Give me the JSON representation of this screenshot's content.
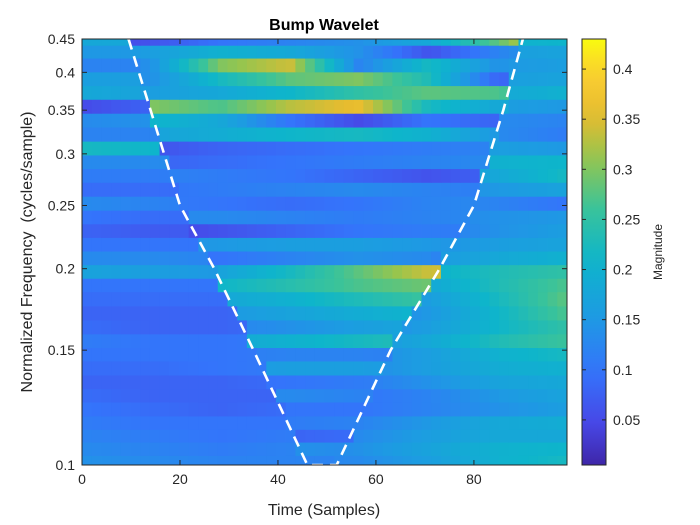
{
  "chart_data": {
    "type": "heatmap",
    "title": "Bump Wavelet",
    "xlabel": "Time (Samples)",
    "ylabel": "Normalized Frequency  (cycles/sample)",
    "colorbar_label": "Magnitude",
    "xlim": [
      0,
      99
    ],
    "ylim": [
      0.1,
      0.45
    ],
    "yscale": "log",
    "clim": [
      0.005,
      0.43
    ],
    "colormap": "parula",
    "x_ticks": [
      0,
      20,
      40,
      60,
      80
    ],
    "x_tick_labels": [
      "0",
      "20",
      "40",
      "60",
      "80"
    ],
    "y_ticks": [
      0.1,
      0.15,
      0.2,
      0.25,
      0.3,
      0.35,
      0.4,
      0.45
    ],
    "y_tick_labels": [
      "0.1",
      "0.15",
      "0.2",
      "0.25",
      "0.3",
      "0.35",
      "0.4",
      "0.45"
    ],
    "cb_ticks": [
      0.05,
      0.1,
      0.15,
      0.2,
      0.25,
      0.3,
      0.35,
      0.4
    ],
    "cb_tick_labels": [
      "0.05",
      "0.1",
      "0.15",
      "0.2",
      "0.25",
      "0.3",
      "0.35",
      "0.4"
    ],
    "cone_of_influence": {
      "style": "white dashed",
      "points": [
        [
          9.5,
          0.45
        ],
        [
          14,
          0.35
        ],
        [
          20,
          0.25
        ],
        [
          27,
          0.2
        ],
        [
          35,
          0.15
        ],
        [
          46,
          0.1
        ],
        [
          52,
          0.1
        ],
        [
          63,
          0.15
        ],
        [
          73,
          0.2
        ],
        [
          80,
          0.25
        ],
        [
          86,
          0.35
        ],
        [
          90,
          0.45
        ]
      ]
    },
    "rows": [
      {
        "f": 0.101,
        "inside": [
          0.1,
          0.1,
          0.11,
          0.12,
          0.12,
          0.1,
          0.09,
          0.09
        ],
        "outside": [
          0.14,
          0.13,
          0.12,
          0.12,
          0.13,
          0.16,
          0.2,
          0.22
        ]
      },
      {
        "f": 0.106,
        "inside": [
          0.12,
          0.13,
          0.13,
          0.14,
          0.13,
          0.12,
          0.12,
          0.13
        ],
        "outside": [
          0.13,
          0.12,
          0.11,
          0.12,
          0.14,
          0.17,
          0.2,
          0.21
        ]
      },
      {
        "f": 0.111,
        "inside": [
          0.1,
          0.09,
          0.08,
          0.08,
          0.09,
          0.1,
          0.11,
          0.12
        ],
        "outside": [
          0.12,
          0.11,
          0.1,
          0.11,
          0.13,
          0.16,
          0.18,
          0.18
        ]
      },
      {
        "f": 0.116,
        "inside": [
          0.12,
          0.12,
          0.11,
          0.11,
          0.12,
          0.14,
          0.15,
          0.15
        ],
        "outside": [
          0.11,
          0.1,
          0.1,
          0.1,
          0.12,
          0.15,
          0.18,
          0.19
        ]
      },
      {
        "f": 0.122,
        "inside": [
          0.07,
          0.08,
          0.09,
          0.1,
          0.1,
          0.09,
          0.08,
          0.07
        ],
        "outside": [
          0.1,
          0.09,
          0.08,
          0.09,
          0.1,
          0.12,
          0.14,
          0.16
        ]
      },
      {
        "f": 0.128,
        "inside": [
          0.11,
          0.12,
          0.13,
          0.13,
          0.12,
          0.11,
          0.1,
          0.09
        ],
        "outside": [
          0.09,
          0.08,
          0.08,
          0.08,
          0.1,
          0.12,
          0.15,
          0.17
        ]
      },
      {
        "f": 0.134,
        "inside": [
          0.08,
          0.08,
          0.09,
          0.1,
          0.11,
          0.12,
          0.12,
          0.11
        ],
        "outside": [
          0.08,
          0.08,
          0.08,
          0.09,
          0.11,
          0.14,
          0.17,
          0.18
        ]
      },
      {
        "f": 0.141,
        "inside": [
          0.13,
          0.14,
          0.15,
          0.16,
          0.16,
          0.15,
          0.14,
          0.13
        ],
        "outside": [
          0.09,
          0.09,
          0.1,
          0.11,
          0.13,
          0.16,
          0.19,
          0.2
        ]
      },
      {
        "f": 0.148,
        "inside": [
          0.1,
          0.1,
          0.11,
          0.12,
          0.12,
          0.11,
          0.11,
          0.11
        ],
        "outside": [
          0.1,
          0.1,
          0.1,
          0.11,
          0.13,
          0.16,
          0.2,
          0.22
        ]
      },
      {
        "f": 0.155,
        "inside": [
          0.14,
          0.16,
          0.18,
          0.2,
          0.22,
          0.24,
          0.26,
          0.27
        ],
        "outside": [
          0.11,
          0.1,
          0.1,
          0.11,
          0.14,
          0.18,
          0.23,
          0.26
        ]
      },
      {
        "f": 0.163,
        "inside": [
          0.1,
          0.11,
          0.12,
          0.14,
          0.16,
          0.18,
          0.19,
          0.2
        ],
        "outside": [
          0.09,
          0.08,
          0.08,
          0.09,
          0.12,
          0.16,
          0.21,
          0.25
        ]
      },
      {
        "f": 0.171,
        "inside": [
          0.12,
          0.13,
          0.15,
          0.17,
          0.19,
          0.21,
          0.22,
          0.22
        ],
        "outside": [
          0.08,
          0.08,
          0.08,
          0.09,
          0.11,
          0.15,
          0.21,
          0.27
        ]
      },
      {
        "f": 0.18,
        "inside": [
          0.15,
          0.16,
          0.18,
          0.2,
          0.23,
          0.26,
          0.28,
          0.28
        ],
        "outside": [
          0.09,
          0.09,
          0.09,
          0.1,
          0.12,
          0.16,
          0.22,
          0.28
        ]
      },
      {
        "f": 0.189,
        "inside": [
          0.18,
          0.19,
          0.21,
          0.24,
          0.27,
          0.29,
          0.3,
          0.28
        ],
        "outside": [
          0.1,
          0.1,
          0.1,
          0.11,
          0.14,
          0.18,
          0.23,
          0.27
        ]
      },
      {
        "f": 0.198,
        "inside": [
          0.12,
          0.14,
          0.17,
          0.22,
          0.28,
          0.34,
          0.35,
          0.3
        ],
        "outside": [
          0.17,
          0.16,
          0.15,
          0.15,
          0.17,
          0.2,
          0.23,
          0.25
        ]
      },
      {
        "f": 0.208,
        "inside": [
          0.08,
          0.09,
          0.1,
          0.12,
          0.14,
          0.13,
          0.05,
          0.11
        ],
        "outside": [
          0.13,
          0.13,
          0.12,
          0.12,
          0.13,
          0.15,
          0.18,
          0.2
        ]
      },
      {
        "f": 0.218,
        "inside": [
          0.13,
          0.14,
          0.15,
          0.16,
          0.16,
          0.15,
          0.14,
          0.14
        ],
        "outside": [
          0.1,
          0.1,
          0.1,
          0.11,
          0.12,
          0.14,
          0.16,
          0.17
        ]
      },
      {
        "f": 0.229,
        "inside": [
          0.04,
          0.04,
          0.06,
          0.08,
          0.1,
          0.11,
          0.11,
          0.12
        ],
        "outside": [
          0.08,
          0.07,
          0.07,
          0.08,
          0.09,
          0.11,
          0.14,
          0.16
        ]
      },
      {
        "f": 0.24,
        "inside": [
          0.12,
          0.13,
          0.13,
          0.12,
          0.11,
          0.12,
          0.13,
          0.14
        ],
        "outside": [
          0.1,
          0.09,
          0.09,
          0.09,
          0.1,
          0.12,
          0.14,
          0.15
        ]
      },
      {
        "f": 0.252,
        "inside": [
          0.11,
          0.11,
          0.1,
          0.09,
          0.1,
          0.12,
          0.13,
          0.13
        ],
        "outside": [
          0.13,
          0.12,
          0.11,
          0.11,
          0.12,
          0.13,
          0.12,
          0.1
        ]
      },
      {
        "f": 0.265,
        "inside": [
          0.1,
          0.1,
          0.11,
          0.12,
          0.13,
          0.12,
          0.11,
          0.12
        ],
        "outside": [
          0.09,
          0.09,
          0.09,
          0.1,
          0.11,
          0.13,
          0.15,
          0.17
        ]
      },
      {
        "f": 0.278,
        "inside": [
          0.13,
          0.12,
          0.11,
          0.1,
          0.08,
          0.06,
          0.08,
          0.12
        ],
        "outside": [
          0.11,
          0.11,
          0.12,
          0.13,
          0.14,
          0.15,
          0.18,
          0.22
        ]
      },
      {
        "f": 0.292,
        "inside": [
          0.08,
          0.08,
          0.09,
          0.1,
          0.11,
          0.12,
          0.13,
          0.14
        ],
        "outside": [
          0.13,
          0.13,
          0.14,
          0.15,
          0.16,
          0.18,
          0.2,
          0.21
        ]
      },
      {
        "f": 0.306,
        "inside": [
          0.05,
          0.06,
          0.08,
          0.09,
          0.1,
          0.11,
          0.12,
          0.13
        ],
        "outside": [
          0.22,
          0.21,
          0.2,
          0.19,
          0.18,
          0.17,
          0.16,
          0.15
        ]
      },
      {
        "f": 0.322,
        "inside": [
          0.16,
          0.17,
          0.19,
          0.21,
          0.22,
          0.2,
          0.15,
          0.12
        ],
        "outside": [
          0.12,
          0.12,
          0.13,
          0.14,
          0.15,
          0.15,
          0.13,
          0.11
        ]
      },
      {
        "f": 0.338,
        "inside": [
          0.2,
          0.21,
          0.18,
          0.1,
          0.05,
          0.1,
          0.08,
          0.14
        ],
        "outside": [
          0.13,
          0.14,
          0.15,
          0.16,
          0.16,
          0.15,
          0.13,
          0.12
        ]
      },
      {
        "f": 0.355,
        "inside": [
          0.32,
          0.3,
          0.27,
          0.33,
          0.36,
          0.22,
          0.18,
          0.22
        ],
        "outside": [
          0.05,
          0.08,
          0.11,
          0.14,
          0.16,
          0.17,
          0.16,
          0.15
        ]
      },
      {
        "f": 0.373,
        "inside": [
          0.15,
          0.16,
          0.18,
          0.21,
          0.25,
          0.28,
          0.27,
          0.22
        ],
        "outside": [
          0.18,
          0.17,
          0.16,
          0.15,
          0.15,
          0.16,
          0.18,
          0.2
        ]
      },
      {
        "f": 0.391,
        "inside": [
          0.12,
          0.14,
          0.22,
          0.28,
          0.3,
          0.23,
          0.08,
          0.12
        ],
        "outside": [
          0.16,
          0.16,
          0.15,
          0.15,
          0.15,
          0.15,
          0.16,
          0.17
        ]
      },
      {
        "f": 0.411,
        "inside": [
          0.1,
          0.14,
          0.3,
          0.34,
          0.12,
          0.22,
          0.14,
          0.18
        ],
        "outside": [
          0.12,
          0.12,
          0.12,
          0.13,
          0.14,
          0.14,
          0.15,
          0.16
        ]
      },
      {
        "f": 0.431,
        "inside": [
          0.13,
          0.16,
          0.2,
          0.18,
          0.14,
          0.06,
          0.12,
          0.17
        ],
        "outside": [
          0.15,
          0.15,
          0.14,
          0.14,
          0.14,
          0.15,
          0.16,
          0.17
        ]
      },
      {
        "f": 0.45,
        "inside": [
          0.04,
          0.06,
          0.1,
          0.12,
          0.14,
          0.18,
          0.28,
          0.42
        ],
        "outside": [
          0.18,
          0.18,
          0.17,
          0.17,
          0.18,
          0.19,
          0.2,
          0.21
        ]
      }
    ]
  }
}
